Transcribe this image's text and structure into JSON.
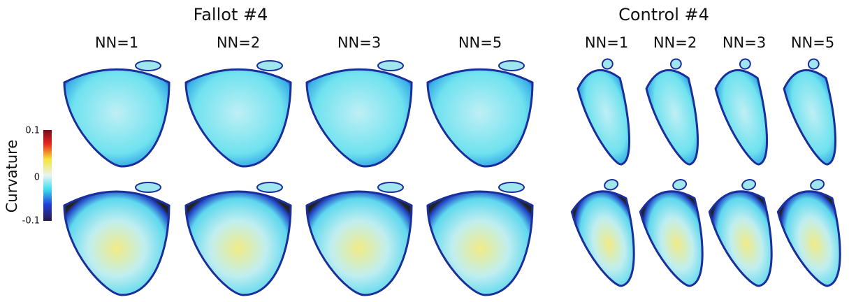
{
  "groups": [
    {
      "title": "Fallot #4",
      "columns": [
        "NN=1",
        "NN=2",
        "NN=3",
        "NN=5"
      ]
    },
    {
      "title": "Control #4",
      "columns": [
        "NN=1",
        "NN=2",
        "NN=3",
        "NN=5"
      ]
    }
  ],
  "colorbar": {
    "label": "Curvature",
    "ticks": [
      0.1,
      0,
      -0.1
    ]
  }
}
